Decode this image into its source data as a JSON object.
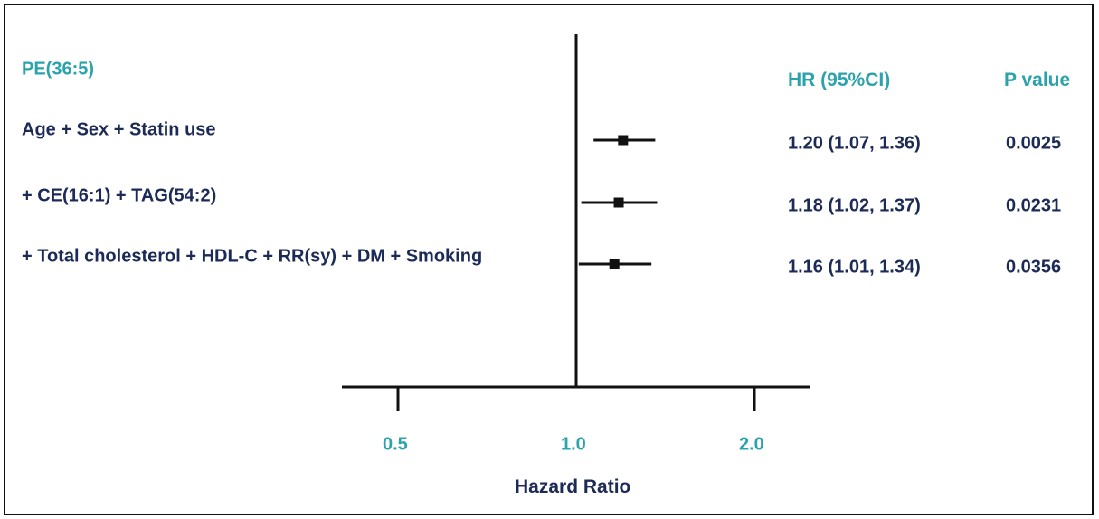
{
  "chart_data": {
    "type": "forest",
    "exposure": "PE(36:5)",
    "columns": {
      "hr": "HR (95%CI)",
      "p": "P value"
    },
    "xlabel": "Hazard Ratio",
    "x_scale": "log",
    "reference_line": 1.0,
    "xticks": [
      {
        "value": 0.5,
        "label": "0.5"
      },
      {
        "value": 1.0,
        "label": "1.0"
      },
      {
        "value": 2.0,
        "label": "2.0"
      }
    ],
    "rows": [
      {
        "label": "Age + Sex + Statin use",
        "hr": 1.2,
        "lower": 1.07,
        "upper": 1.36,
        "hr_text": "1.20 (1.07, 1.36)",
        "p": "0.0025"
      },
      {
        "label": "+ CE(16:1) + TAG(54:2)",
        "hr": 1.18,
        "lower": 1.02,
        "upper": 1.37,
        "hr_text": "1.18 (1.02, 1.37)",
        "p": "0.0231"
      },
      {
        "label": "+ Total cholesterol + HDL-C + RR(sy) + DM + Smoking",
        "hr": 1.16,
        "lower": 1.01,
        "upper": 1.34,
        "hr_text": "1.16 (1.01, 1.34)",
        "p": "0.0356"
      }
    ],
    "colors": {
      "header": "#2ba3ad",
      "text": "#1c2a57",
      "axis": "#111111"
    }
  }
}
